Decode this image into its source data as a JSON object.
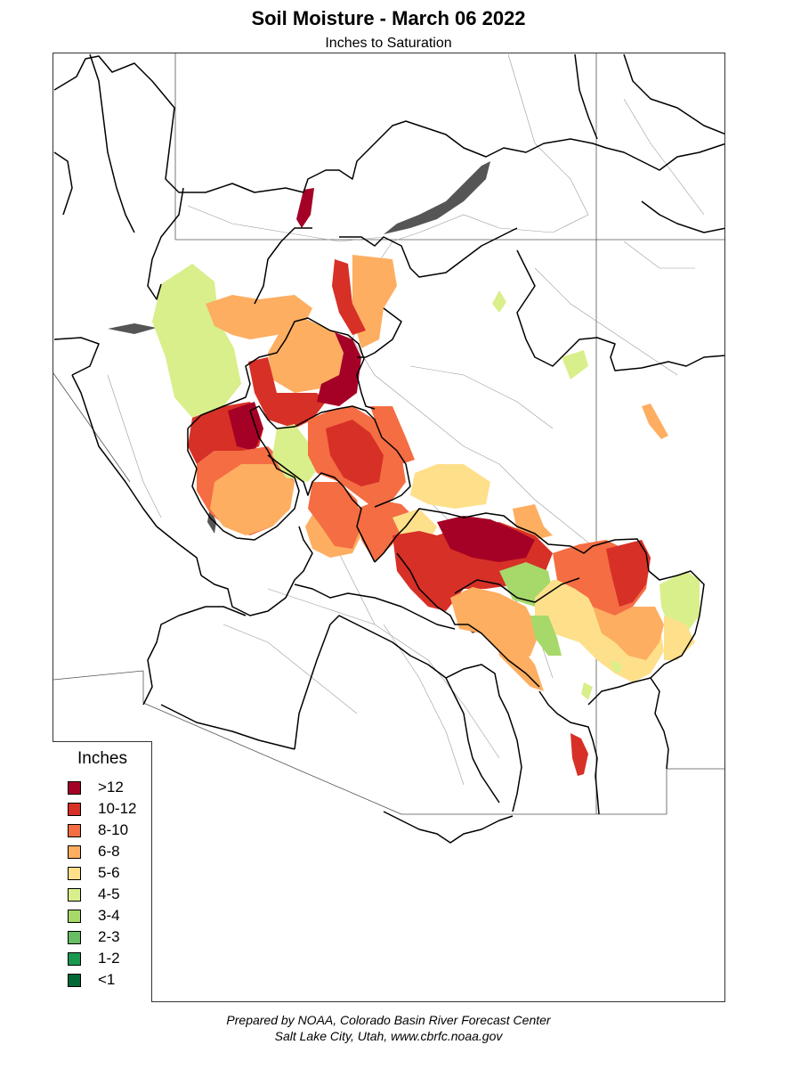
{
  "header": {
    "title": "Soil Moisture - March 06 2022",
    "subtitle": "Inches to Saturation"
  },
  "legend": {
    "title": "Inches",
    "items": [
      {
        "label": ">12",
        "color": "#a50026"
      },
      {
        "label": "10-12",
        "color": "#d73027"
      },
      {
        "label": "8-10",
        "color": "#f46d43"
      },
      {
        "label": "6-8",
        "color": "#fdae61"
      },
      {
        "label": "5-6",
        "color": "#fee08b"
      },
      {
        "label": "4-5",
        "color": "#d9ef8b"
      },
      {
        "label": "3-4",
        "color": "#a6d96a"
      },
      {
        "label": "2-3",
        "color": "#66bd63"
      },
      {
        "label": "1-2",
        "color": "#1a9850"
      },
      {
        "label": "<1",
        "color": "#006837"
      }
    ]
  },
  "footer": {
    "line1": "Prepared by NOAA, Colorado Basin River Forecast Center",
    "line2": "Salt Lake City, Utah, www.cbrfc.noaa.gov"
  }
}
